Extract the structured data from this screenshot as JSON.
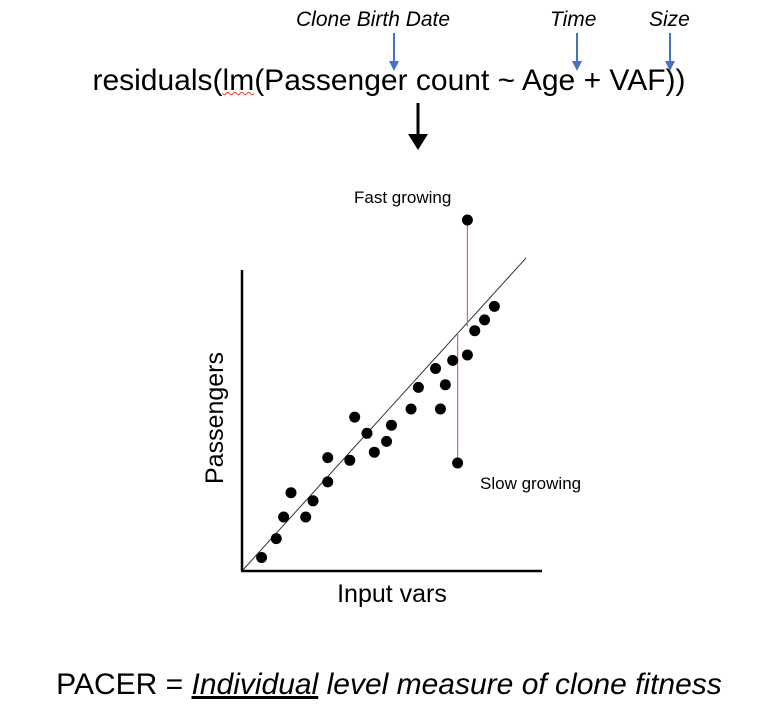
{
  "formula": {
    "prefix": "residuals(",
    "lm": "lm",
    "suffix": "(Passenger count ~ Age + VAF))"
  },
  "annotations": {
    "clone_birth_date": "Clone Birth Date",
    "time": "Time",
    "size": "Size"
  },
  "colors": {
    "annotation_arrow": "#4472c4",
    "residual_line": "#e0607e",
    "points": "#000000",
    "squiggle": "#e0382f"
  },
  "chart_data": {
    "type": "scatter",
    "xlabel": "Input vars",
    "ylabel": "Passengers",
    "xlim": [
      0,
      10
    ],
    "ylim": [
      0,
      10
    ],
    "regression": {
      "intercept": 0,
      "slope": 1
    },
    "points": [
      {
        "x": 0.8,
        "y": 0.5
      },
      {
        "x": 1.4,
        "y": 1.2
      },
      {
        "x": 1.7,
        "y": 2.0
      },
      {
        "x": 2.0,
        "y": 2.9
      },
      {
        "x": 2.6,
        "y": 2.0
      },
      {
        "x": 2.9,
        "y": 2.6
      },
      {
        "x": 3.5,
        "y": 3.3
      },
      {
        "x": 3.5,
        "y": 4.2
      },
      {
        "x": 4.4,
        "y": 4.1
      },
      {
        "x": 4.6,
        "y": 5.7
      },
      {
        "x": 5.1,
        "y": 5.1
      },
      {
        "x": 5.4,
        "y": 4.4
      },
      {
        "x": 5.9,
        "y": 4.8
      },
      {
        "x": 6.1,
        "y": 5.4
      },
      {
        "x": 6.9,
        "y": 6.0
      },
      {
        "x": 7.2,
        "y": 6.8
      },
      {
        "x": 8.1,
        "y": 6.0
      },
      {
        "x": 7.9,
        "y": 7.5
      },
      {
        "x": 8.3,
        "y": 6.9
      },
      {
        "x": 8.6,
        "y": 7.8
      },
      {
        "x": 9.2,
        "y": 8.0
      },
      {
        "x": 9.5,
        "y": 8.9
      },
      {
        "x": 9.9,
        "y": 9.3
      },
      {
        "x": 10.3,
        "y": 9.8
      }
    ],
    "outliers": [
      {
        "label": "Fast growing",
        "x": 9.2,
        "y": 13.0
      },
      {
        "label": "Slow growing",
        "x": 8.8,
        "y": 4.0
      }
    ]
  },
  "footer": {
    "prefix": "PACER = ",
    "underlined": "Individual",
    "rest": " level measure of clone fitness"
  }
}
